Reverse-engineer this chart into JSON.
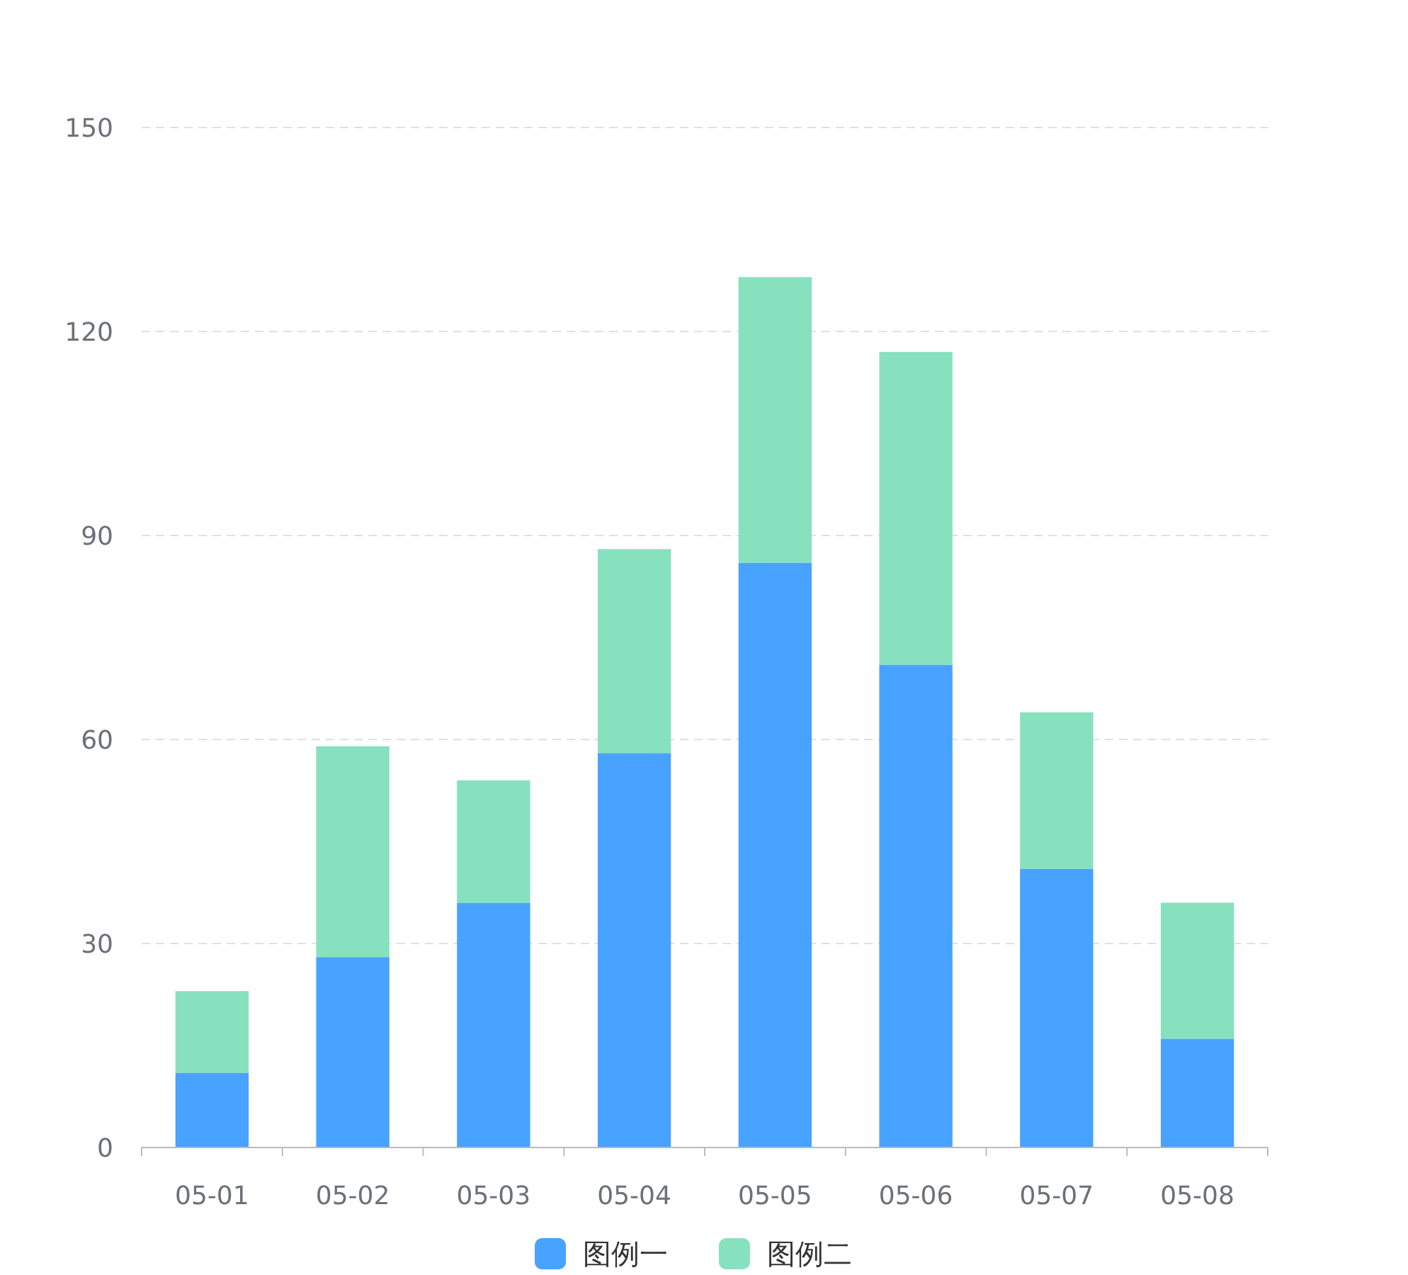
{
  "chart_data": {
    "type": "bar",
    "stacked": true,
    "categories": [
      "05-01",
      "05-02",
      "05-03",
      "05-04",
      "05-05",
      "05-06",
      "05-07",
      "05-08"
    ],
    "series": [
      {
        "name": "图例一",
        "color": "#48a2ff",
        "values": [
          11,
          28,
          36,
          58,
          86,
          71,
          41,
          16
        ]
      },
      {
        "name": "图例二",
        "color": "#87e1bf",
        "values": [
          12,
          31,
          18,
          30,
          42,
          46,
          23,
          20
        ]
      }
    ],
    "ylim": [
      0,
      150
    ],
    "yticks": [
      0,
      30,
      60,
      90,
      120,
      150
    ],
    "grid": "y",
    "legend": "bottom"
  }
}
